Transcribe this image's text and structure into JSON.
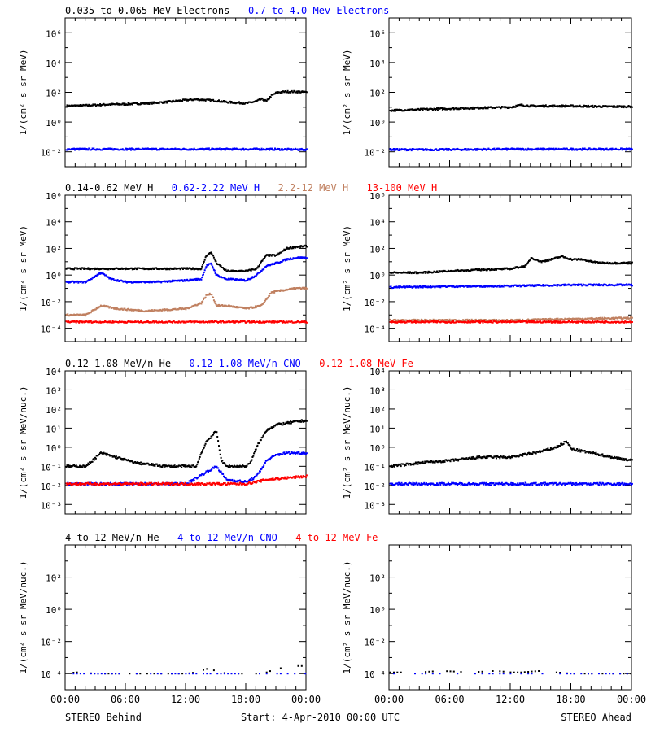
{
  "footer": {
    "left_label": "STEREO Behind",
    "center_label": "Start:  4-Apr-2010 00:00 UTC",
    "right_label": "STEREO Ahead"
  },
  "colors": {
    "black": "#000000",
    "blue": "#0000ff",
    "brown": "#c08060",
    "red": "#ff0000",
    "frame": "#000000"
  },
  "chart_data": [
    {
      "type": "scatter",
      "row": 0,
      "spacecraft": "STEREO Behind",
      "title_segments": [
        {
          "text": "0.035 to 0.065 MeV Electrons",
          "color": "black"
        },
        {
          "text": "0.7 to 4.0 Mev Electrons",
          "color": "blue"
        }
      ],
      "ylabel": "1/(cm² s sr MeV)",
      "yscale": "log",
      "ylim_exp": [
        -3,
        7
      ],
      "yticks_exp": [
        -2,
        0,
        2,
        4,
        6
      ],
      "xlabel": "",
      "xlim_hours": [
        0,
        24
      ],
      "xticks": [
        "00:00",
        "06:00",
        "12:00",
        "18:00",
        "00:00"
      ],
      "series": [
        {
          "color": "black",
          "x_hours": [
            0,
            2,
            4,
            6,
            8,
            10,
            12,
            13,
            14,
            15,
            16,
            17,
            18,
            19,
            19.5,
            20,
            20.5,
            21,
            21.5,
            22,
            23,
            24
          ],
          "y": [
            12,
            13,
            15,
            16,
            18,
            22,
            30,
            33,
            30,
            27,
            22,
            20,
            18,
            25,
            35,
            25,
            60,
            95,
            105,
            110,
            110,
            100
          ]
        },
        {
          "color": "blue",
          "x_hours": [
            0,
            4,
            8,
            12,
            16,
            20,
            24
          ],
          "y": [
            0.015,
            0.015,
            0.015,
            0.015,
            0.015,
            0.015,
            0.014
          ]
        }
      ]
    },
    {
      "type": "scatter",
      "row": 0,
      "spacecraft": "STEREO Ahead",
      "title_segments": [],
      "ylabel": "1/(cm² s sr MeV)",
      "yscale": "log",
      "ylim_exp": [
        -3,
        7
      ],
      "yticks_exp": [
        -2,
        0,
        2,
        4,
        6
      ],
      "xlabel": "",
      "xlim_hours": [
        0,
        24
      ],
      "xticks": [
        "00:00",
        "06:00",
        "12:00",
        "18:00",
        "00:00"
      ],
      "series": [
        {
          "color": "black",
          "x_hours": [
            0,
            3,
            6,
            9,
            12,
            13,
            14,
            16,
            18,
            21,
            24
          ],
          "y": [
            6,
            7,
            8,
            9,
            10,
            14,
            12,
            12,
            12,
            11,
            11
          ]
        },
        {
          "color": "blue",
          "x_hours": [
            0,
            6,
            12,
            18,
            24
          ],
          "y": [
            0.014,
            0.014,
            0.015,
            0.015,
            0.015
          ]
        }
      ]
    },
    {
      "type": "scatter",
      "row": 1,
      "spacecraft": "STEREO Behind",
      "title_segments": [
        {
          "text": "0.14-0.62 MeV H",
          "color": "black"
        },
        {
          "text": "0.62-2.22 MeV H",
          "color": "blue"
        },
        {
          "text": "2.2-12 MeV H",
          "color": "brown"
        },
        {
          "text": "13-100 MeV H",
          "color": "red"
        }
      ],
      "ylabel": "1/(cm² s sr MeV)",
      "yscale": "log",
      "ylim_exp": [
        -5,
        6
      ],
      "yticks_exp": [
        -4,
        -2,
        0,
        2,
        4,
        6
      ],
      "xlabel": "",
      "xlim_hours": [
        0,
        24
      ],
      "xticks": [
        "00:00",
        "06:00",
        "12:00",
        "18:00",
        "00:00"
      ],
      "series": [
        {
          "color": "black",
          "x_hours": [
            0,
            3,
            6,
            9,
            12,
            13.5,
            14,
            14.5,
            15,
            16,
            18,
            19,
            19.5,
            20,
            21,
            22,
            23,
            24
          ],
          "y": [
            3,
            3,
            3,
            3,
            3,
            3,
            30,
            50,
            8,
            2,
            2,
            3,
            10,
            30,
            30,
            100,
            130,
            150
          ]
        },
        {
          "color": "blue",
          "x_hours": [
            0,
            2,
            3.5,
            4.5,
            6,
            9,
            12,
            13.5,
            14,
            14.5,
            15,
            16,
            18,
            19,
            20,
            21,
            22,
            23,
            24
          ],
          "y": [
            0.3,
            0.3,
            1.5,
            0.5,
            0.3,
            0.3,
            0.4,
            0.5,
            5,
            7,
            1,
            0.5,
            0.4,
            1,
            5,
            8,
            15,
            20,
            20
          ]
        },
        {
          "color": "brown",
          "x_hours": [
            0,
            2,
            3.5,
            5,
            8,
            12,
            13.5,
            14,
            14.5,
            15,
            16,
            18,
            19.5,
            20.5,
            22,
            23,
            24
          ],
          "y": [
            0.001,
            0.001,
            0.005,
            0.003,
            0.002,
            0.003,
            0.008,
            0.03,
            0.04,
            0.005,
            0.005,
            0.003,
            0.005,
            0.05,
            0.08,
            0.1,
            0.1
          ]
        },
        {
          "color": "red",
          "x_hours": [
            0,
            4,
            8,
            12,
            16,
            20,
            24
          ],
          "y": [
            0.0003,
            0.0003,
            0.0003,
            0.0003,
            0.0003,
            0.0003,
            0.0003
          ]
        }
      ]
    },
    {
      "type": "scatter",
      "row": 1,
      "spacecraft": "STEREO Ahead",
      "title_segments": [],
      "ylabel": "1/(cm² s sr MeV)",
      "yscale": "log",
      "ylim_exp": [
        -5,
        6
      ],
      "yticks_exp": [
        -4,
        -2,
        0,
        2,
        4,
        6
      ],
      "xlabel": "",
      "xlim_hours": [
        0,
        24
      ],
      "xticks": [
        "00:00",
        "06:00",
        "12:00",
        "18:00",
        "00:00"
      ],
      "series": [
        {
          "color": "black",
          "x_hours": [
            0,
            3,
            6,
            9,
            12,
            13.5,
            14,
            15,
            16,
            17,
            18,
            19,
            20,
            21,
            22,
            24
          ],
          "y": [
            1.5,
            1.5,
            2,
            2.5,
            3,
            5,
            20,
            10,
            15,
            25,
            15,
            15,
            10,
            8,
            8,
            8
          ]
        },
        {
          "color": "blue",
          "x_hours": [
            0,
            6,
            12,
            18,
            24
          ],
          "y": [
            0.12,
            0.14,
            0.15,
            0.18,
            0.18
          ]
        },
        {
          "color": "brown",
          "x_hours": [
            0,
            6,
            12,
            18,
            24
          ],
          "y": [
            0.0004,
            0.0004,
            0.0004,
            0.0005,
            0.0006
          ]
        },
        {
          "color": "red",
          "x_hours": [
            0,
            6,
            12,
            18,
            24
          ],
          "y": [
            0.0003,
            0.0003,
            0.0003,
            0.0003,
            0.0003
          ]
        }
      ]
    },
    {
      "type": "scatter",
      "row": 2,
      "spacecraft": "STEREO Behind",
      "title_segments": [
        {
          "text": "0.12-1.08 MeV/n He",
          "color": "black"
        },
        {
          "text": "0.12-1.08 MeV/n CNO",
          "color": "blue"
        },
        {
          "text": "0.12-1.08 MeV Fe",
          "color": "red"
        }
      ],
      "ylabel": "1/(cm² s sr MeV/nuc.)",
      "yscale": "log",
      "ylim_exp": [
        -3.5,
        4
      ],
      "yticks_exp": [
        -3,
        -2,
        -1,
        0,
        1,
        2,
        3,
        4
      ],
      "xlabel": "",
      "xlim_hours": [
        0,
        24
      ],
      "xticks": [
        "00:00",
        "06:00",
        "12:00",
        "18:00",
        "00:00"
      ],
      "series": [
        {
          "color": "black",
          "x_hours": [
            0,
            2,
            3.5,
            5,
            7,
            10,
            13,
            13.5,
            14,
            15,
            15.5,
            16,
            18,
            18.5,
            19,
            20,
            21,
            22,
            23,
            24
          ],
          "y": [
            0.1,
            0.1,
            0.5,
            0.3,
            0.15,
            0.1,
            0.1,
            0.5,
            2,
            7,
            0.2,
            0.1,
            0.1,
            0.2,
            1,
            8,
            15,
            18,
            22,
            25
          ]
        },
        {
          "color": "blue",
          "x_hours": [
            0,
            6,
            12,
            14,
            15,
            16,
            18,
            19,
            20,
            21,
            22,
            24
          ],
          "y": [
            0.012,
            0.012,
            0.012,
            0.05,
            0.1,
            0.02,
            0.015,
            0.03,
            0.2,
            0.4,
            0.5,
            0.5
          ]
        },
        {
          "color": "red",
          "x_hours": [
            0,
            6,
            12,
            18,
            20,
            24
          ],
          "y": [
            0.012,
            0.012,
            0.012,
            0.012,
            0.02,
            0.03
          ]
        }
      ]
    },
    {
      "type": "scatter",
      "row": 2,
      "spacecraft": "STEREO Ahead",
      "title_segments": [],
      "ylabel": "1/(cm² s sr MeV/nuc.)",
      "yscale": "log",
      "ylim_exp": [
        -3.5,
        4
      ],
      "yticks_exp": [
        -3,
        -2,
        -1,
        0,
        1,
        2,
        3,
        4
      ],
      "xlabel": "",
      "xlim_hours": [
        0,
        24
      ],
      "xticks": [
        "00:00",
        "06:00",
        "12:00",
        "18:00",
        "00:00"
      ],
      "series": [
        {
          "color": "black",
          "x_hours": [
            0,
            3,
            6,
            9,
            12,
            15,
            16.5,
            17.5,
            18,
            20,
            22,
            24
          ],
          "y": [
            0.1,
            0.15,
            0.2,
            0.3,
            0.3,
            0.6,
            1,
            2,
            0.8,
            0.5,
            0.3,
            0.2
          ]
        },
        {
          "color": "blue",
          "x_hours": [
            0,
            6,
            12,
            18,
            24
          ],
          "y": [
            0.012,
            0.012,
            0.012,
            0.012,
            0.012
          ]
        }
      ]
    },
    {
      "type": "scatter",
      "row": 3,
      "spacecraft": "STEREO Behind",
      "title_segments": [
        {
          "text": "4 to 12 MeV/n He",
          "color": "black"
        },
        {
          "text": "4 to 12 MeV/n CNO",
          "color": "blue"
        },
        {
          "text": "4 to 12 MeV Fe",
          "color": "red"
        }
      ],
      "ylabel": "1/(cm² s sr MeV/nuc.)",
      "yscale": "log",
      "ylim_exp": [
        -5,
        4
      ],
      "yticks_exp": [
        -4,
        -2,
        0,
        2
      ],
      "xlabel": "",
      "xlim_hours": [
        0,
        24
      ],
      "xticks": [
        "00:00",
        "06:00",
        "12:00",
        "18:00",
        "00:00"
      ],
      "series": [
        {
          "color": "black",
          "x_hours": [
            0,
            1,
            3,
            5,
            7,
            9,
            11,
            12,
            13,
            14,
            15,
            16,
            17,
            18,
            19,
            20,
            21,
            22,
            23,
            24
          ],
          "y": [
            0.0001,
            0.00012,
            0.0001,
            0.0001,
            0.0001,
            0.0001,
            0.0001,
            0.0001,
            0.00012,
            0.0002,
            0.00015,
            0.0001,
            0.0001,
            0.0001,
            0.0001,
            0.00012,
            0.0002,
            0.00025,
            0.0003,
            0.0003
          ]
        },
        {
          "color": "blue",
          "x_hours": [
            0,
            6,
            12,
            18,
            24
          ],
          "y": [
            0.0001,
            0.0001,
            0.0001,
            0.0001,
            0.0001
          ]
        }
      ]
    },
    {
      "type": "scatter",
      "row": 3,
      "spacecraft": "STEREO Ahead",
      "title_segments": [],
      "ylabel": "1/(cm² s sr MeV/nuc.)",
      "yscale": "log",
      "ylim_exp": [
        -5,
        4
      ],
      "yticks_exp": [
        -4,
        -2,
        0,
        2
      ],
      "xlabel": "",
      "xlim_hours": [
        0,
        24
      ],
      "xticks": [
        "00:00",
        "06:00",
        "12:00",
        "18:00",
        "00:00"
      ],
      "series": [
        {
          "color": "black",
          "x_hours": [
            3,
            5,
            8,
            10.5,
            12,
            13,
            15,
            16.5,
            18
          ],
          "y": [
            0.00012,
            0.00015,
            0.00012,
            0.00015,
            0.00012,
            0.00012,
            0.00015,
            0.00012,
            0.0001
          ]
        },
        {
          "color": "blue",
          "x_hours": [
            0,
            6,
            12,
            18,
            24
          ],
          "y": [
            0.0001,
            0.0001,
            0.0001,
            0.0001,
            0.0001
          ]
        }
      ]
    }
  ]
}
